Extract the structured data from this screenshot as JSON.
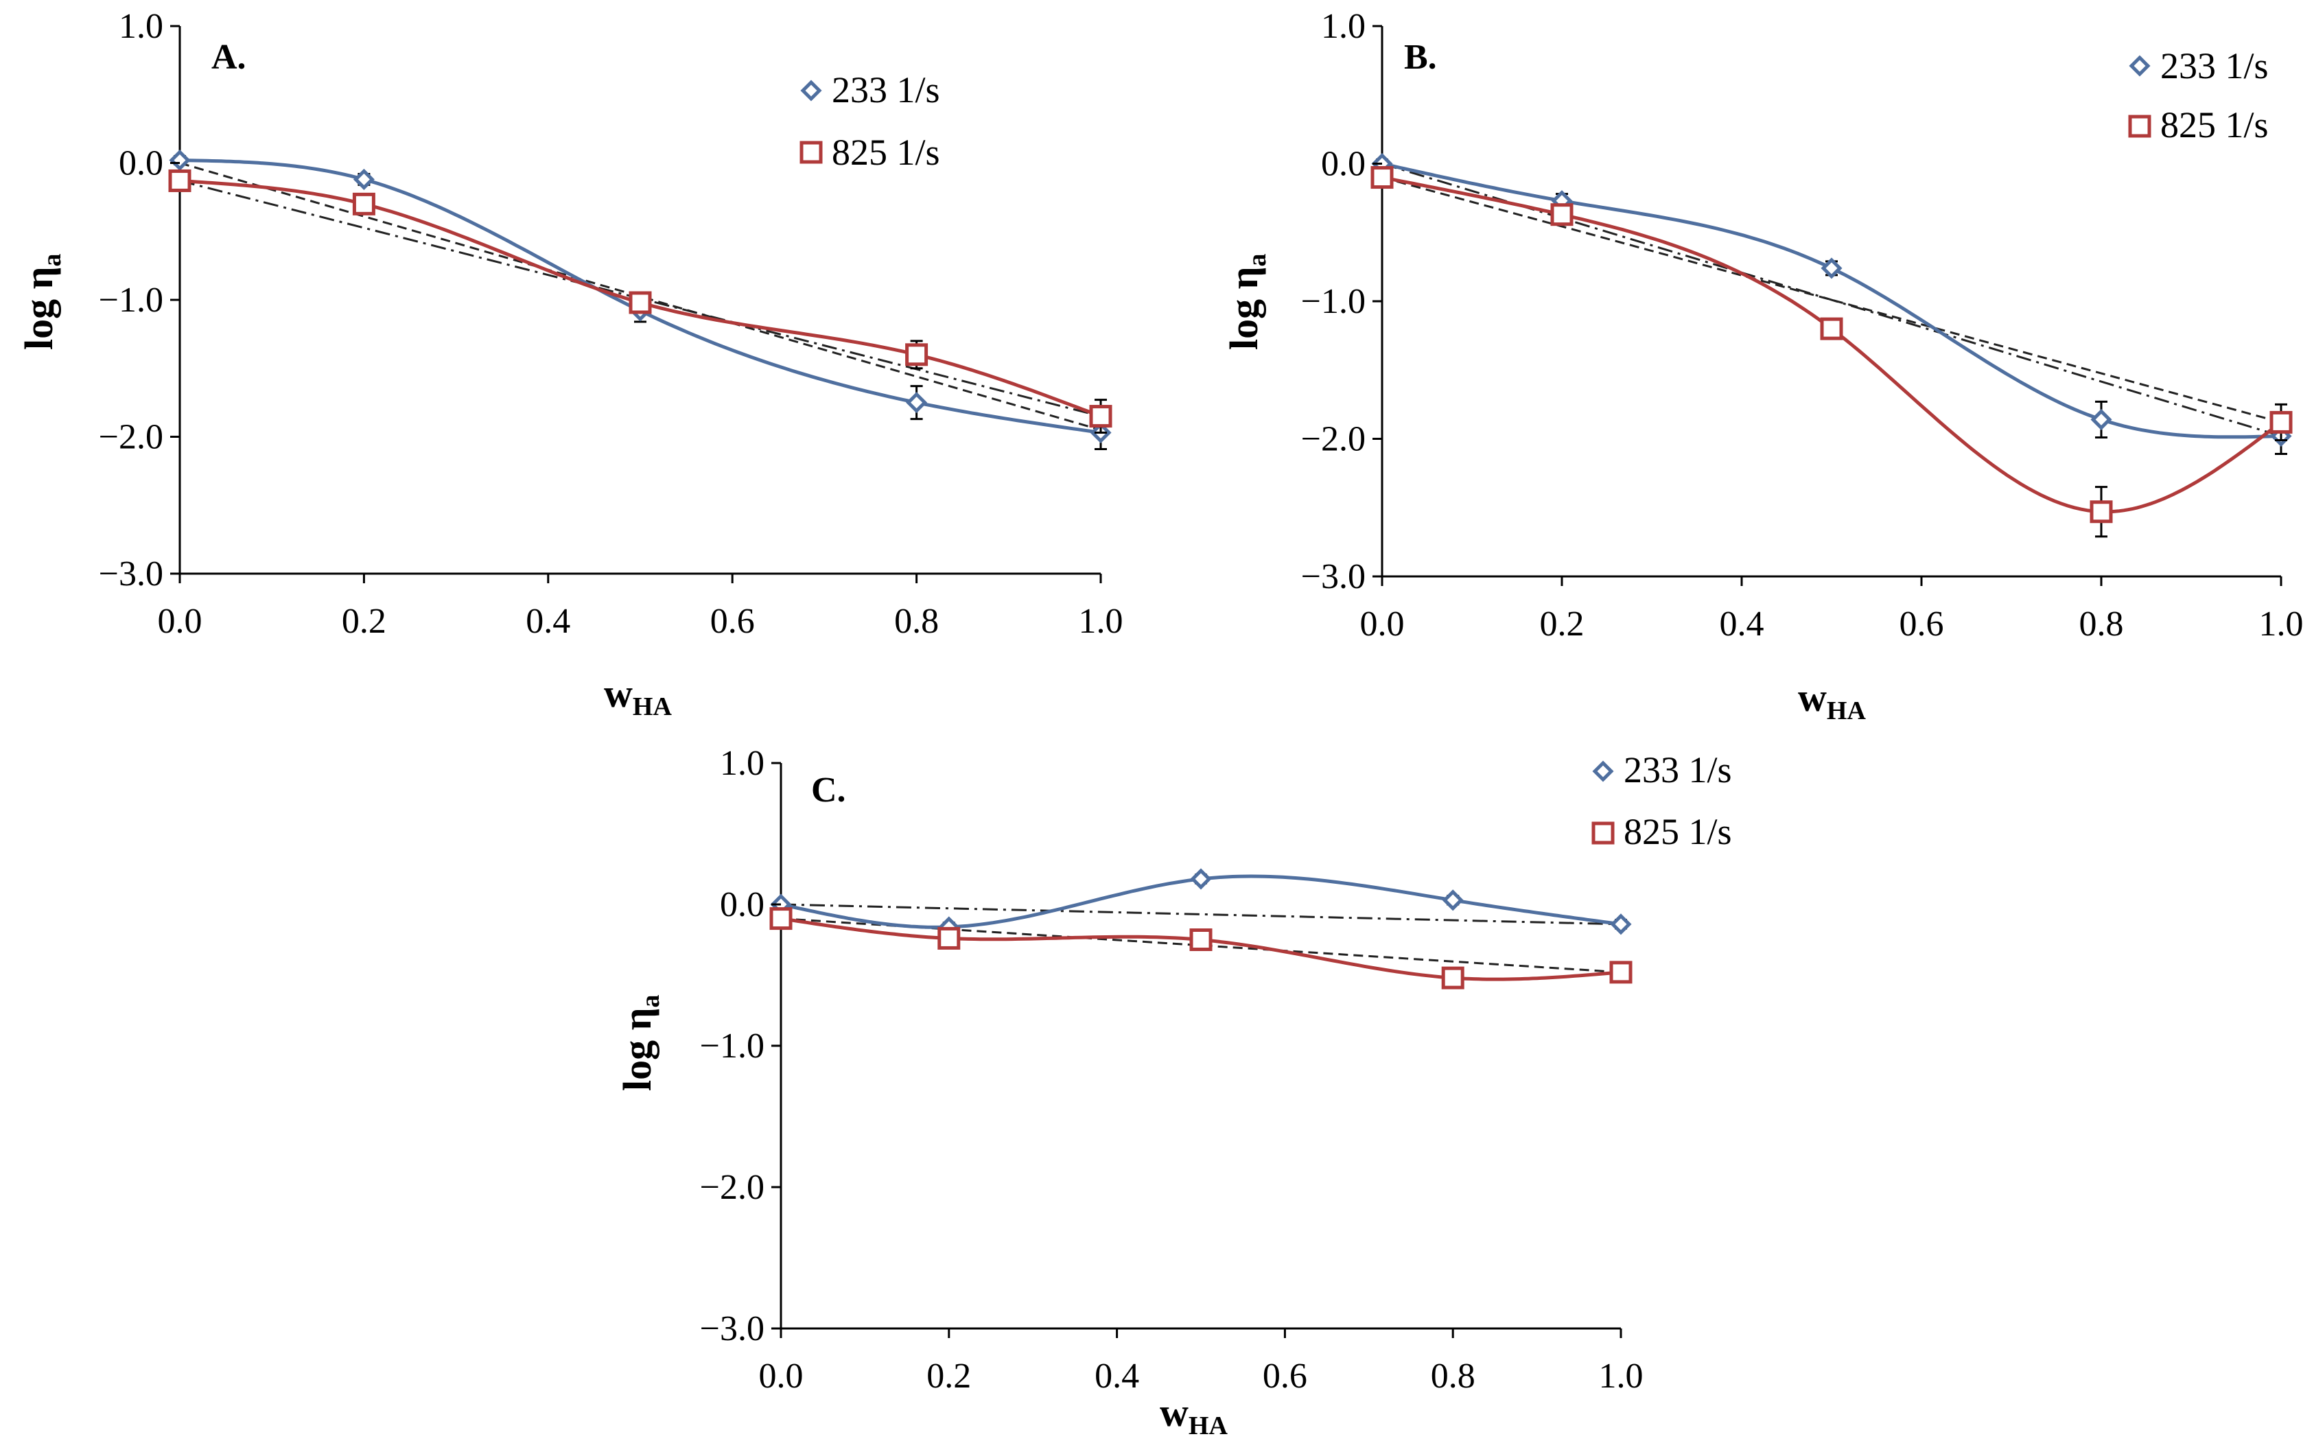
{
  "chart_data": [
    {
      "type": "line",
      "panel": "A.",
      "xlabel_main": "w",
      "xlabel_sub": "HA",
      "ylabel_main": "log η",
      "ylabel_sub": "a",
      "xlim": [
        0,
        1
      ],
      "ylim": [
        -3,
        1
      ],
      "xticks": [
        "0.0",
        "0.2",
        "0.4",
        "0.6",
        "0.8",
        "1.0"
      ],
      "yticks": [
        "1.0",
        "0.0",
        "−1.0",
        "−2.0",
        "−3.0"
      ],
      "legend": [
        "233 1/s",
        "825 1/s"
      ],
      "x": [
        0,
        0.2,
        0.5,
        0.8,
        1.0
      ],
      "series": [
        {
          "name": "233 1/s",
          "marker": "diamond",
          "color": "#4f6f9f",
          "values": [
            0.02,
            -0.12,
            -1.08,
            -1.75,
            -1.97
          ],
          "errors": [
            0.03,
            0.04,
            0.08,
            0.12,
            0.12
          ]
        },
        {
          "name": "825 1/s",
          "marker": "square",
          "color": "#b03a3a",
          "values": [
            -0.13,
            -0.3,
            -1.02,
            -1.4,
            -1.85
          ],
          "errors": [
            0.03,
            0.04,
            0.06,
            0.1,
            0.12
          ]
        }
      ],
      "ref_lines": [
        {
          "style": "dashed",
          "from": [
            0,
            0.0
          ],
          "to": [
            1,
            -1.95
          ]
        },
        {
          "style": "dashdot",
          "from": [
            0,
            -0.13
          ],
          "to": [
            1,
            -1.85
          ]
        }
      ]
    },
    {
      "type": "line",
      "panel": "B.",
      "xlabel_main": "w",
      "xlabel_sub": "HA",
      "ylabel_main": "log η",
      "ylabel_sub": "a",
      "xlim": [
        0,
        1
      ],
      "ylim": [
        -3,
        1
      ],
      "xticks": [
        "0.0",
        "0.2",
        "0.4",
        "0.6",
        "0.8",
        "1.0"
      ],
      "yticks": [
        "1.0",
        "0.0",
        "−1.0",
        "−2.0",
        "−3.0"
      ],
      "legend": [
        "233 1/s",
        "825 1/s"
      ],
      "x": [
        0,
        0.2,
        0.5,
        0.8,
        1.0
      ],
      "series": [
        {
          "name": "233 1/s",
          "marker": "diamond",
          "color": "#4f6f9f",
          "values": [
            0.0,
            -0.27,
            -0.76,
            -1.86,
            -1.98
          ],
          "errors": [
            0.03,
            0.05,
            0.05,
            0.13,
            0.13
          ]
        },
        {
          "name": "825 1/s",
          "marker": "square",
          "color": "#b03a3a",
          "values": [
            -0.1,
            -0.37,
            -1.2,
            -2.53,
            -1.88
          ],
          "errors": [
            0.03,
            0.05,
            0.05,
            0.18,
            0.13
          ]
        }
      ],
      "ref_lines": [
        {
          "style": "dashed",
          "from": [
            0,
            -0.1
          ],
          "to": [
            1,
            -1.88
          ]
        },
        {
          "style": "dashdot",
          "from": [
            0,
            0.0
          ],
          "to": [
            1,
            -1.98
          ]
        }
      ]
    },
    {
      "type": "line",
      "panel": "C.",
      "xlabel_main": "w",
      "xlabel_sub": "HA",
      "ylabel_main": "log η",
      "ylabel_sub": "a",
      "xlim": [
        0,
        1
      ],
      "ylim": [
        -3,
        1
      ],
      "xticks": [
        "0.0",
        "0.2",
        "0.4",
        "0.6",
        "0.8",
        "1.0"
      ],
      "yticks": [
        "1.0",
        "0.0",
        "−1.0",
        "−2.0",
        "−3.0"
      ],
      "legend": [
        "233 1/s",
        "825 1/s"
      ],
      "x": [
        0,
        0.2,
        0.5,
        0.8,
        1.0
      ],
      "series": [
        {
          "name": "233 1/s",
          "marker": "diamond",
          "color": "#4f6f9f",
          "values": [
            0.0,
            -0.16,
            0.18,
            0.03,
            -0.14
          ],
          "errors": [
            0.02,
            0.03,
            0.03,
            0.03,
            0.03
          ]
        },
        {
          "name": "825 1/s",
          "marker": "square",
          "color": "#b03a3a",
          "values": [
            -0.1,
            -0.24,
            -0.25,
            -0.52,
            -0.48
          ],
          "errors": [
            0.02,
            0.03,
            0.03,
            0.07,
            0.04
          ]
        }
      ],
      "ref_lines": [
        {
          "style": "dashdot",
          "from": [
            0,
            0.0
          ],
          "to": [
            1,
            -0.14
          ]
        },
        {
          "style": "dashed",
          "from": [
            0,
            -0.1
          ],
          "to": [
            1,
            -0.48
          ]
        }
      ]
    }
  ]
}
